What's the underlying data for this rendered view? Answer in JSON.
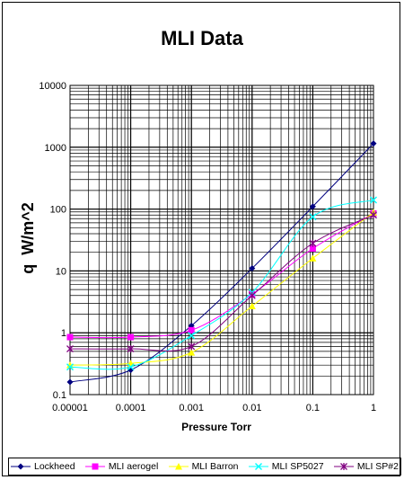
{
  "chart_data": {
    "type": "line",
    "title": "MLI Data",
    "xlabel": "Pressure Torr",
    "ylabel": "q  W/m^2",
    "x_scale": "log",
    "y_scale": "log",
    "xlim": [
      1e-05,
      1
    ],
    "ylim": [
      0.1,
      10000
    ],
    "grid": true,
    "legend_position": "bottom",
    "x_tick_labels": [
      "0.00001",
      "0.0001",
      "0.001",
      "0.01",
      "0.1",
      "1"
    ],
    "y_tick_labels": [
      "0.1",
      "1",
      "10",
      "100",
      "1000",
      "10000"
    ],
    "x": [
      1e-05,
      0.0001,
      0.001,
      0.01,
      0.1,
      1
    ],
    "series": [
      {
        "name": "Lockheed",
        "color": "#000080",
        "marker": "diamond",
        "values": [
          0.16,
          0.25,
          1.3,
          11,
          110,
          1150
        ]
      },
      {
        "name": "MLI aerogel",
        "color": "#ff00ff",
        "marker": "square",
        "values": [
          0.85,
          0.85,
          1.1,
          4.2,
          23,
          85
        ]
      },
      {
        "name": "MLI Barron",
        "color": "#ffff00",
        "marker": "triangle",
        "values": [
          0.3,
          0.32,
          0.48,
          2.7,
          16,
          88
        ]
      },
      {
        "name": "MLI SP5027",
        "color": "#00ffff",
        "marker": "x",
        "values": [
          0.28,
          0.28,
          0.9,
          4.5,
          75,
          140
        ]
      },
      {
        "name": "MLI SP#2",
        "color": "#800080",
        "marker": "star",
        "values": [
          0.55,
          0.55,
          0.6,
          4.0,
          28,
          80
        ]
      }
    ]
  }
}
